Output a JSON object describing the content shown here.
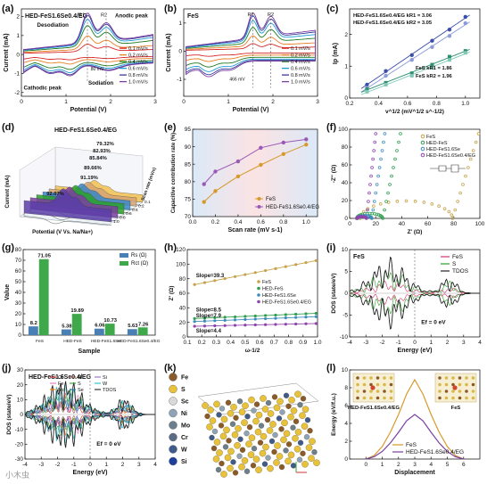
{
  "panel_labels": [
    "(a)",
    "(b)",
    "(c)",
    "(d)",
    "(e)",
    "(f)",
    "(g)",
    "(h)",
    "(i)",
    "(j)",
    "(k)",
    "(l)"
  ],
  "watermark": "小木虫",
  "chart_data": [
    {
      "id": "a",
      "type": "line",
      "title": "HED-FeS1.6Se0.4/EG",
      "xlabel": "Potential (V)",
      "ylabel": "Current (mA)",
      "xlim": [
        0,
        3
      ],
      "ylim": [
        -2.2,
        2.4
      ],
      "xticks": [
        "0",
        "1",
        "2",
        "3"
      ],
      "yticks": [
        "-2",
        "-1",
        "0",
        "1",
        "2"
      ],
      "legend": [
        "0.1 mV/s",
        "0.2 mV/s",
        "0.4 mV/s",
        "0.6 mV/s",
        "0.8 mV/s",
        "1.0 mV/s"
      ],
      "colors": [
        "#d62728",
        "#e67e22",
        "#1f7a1f",
        "#1f9bd7",
        "#3b3b9b",
        "#7b3fa0"
      ],
      "annotations": [
        "Desodiation",
        "Anodic peak",
        "Cathodic peak",
        "Sodiation",
        "R1",
        "R2",
        "80 mV"
      ],
      "scale": [
        0.25,
        0.45,
        0.7,
        0.85,
        0.95,
        1.0
      ]
    },
    {
      "id": "b",
      "type": "line",
      "title": "FeS",
      "xlabel": "Potential (V)",
      "ylabel": "Current (mA)",
      "xlim": [
        0,
        3
      ],
      "ylim": [
        -1.6,
        1.5
      ],
      "xticks": [
        "0",
        "1",
        "2",
        "3"
      ],
      "yticks": [
        "-1",
        "0",
        "1"
      ],
      "legend": [
        "0.1 mV/s",
        "0.2 mV/s",
        "0.4 mV/s",
        "0.6 mV/s",
        "0.8 mV/s",
        "1.0 mV/s"
      ],
      "colors": [
        "#d62728",
        "#e67e22",
        "#1f7a1f",
        "#1f9bd7",
        "#3b3b9b",
        "#7b3fa0"
      ],
      "annotations": [
        "R1",
        "R2",
        "466 mV"
      ],
      "scale": [
        0.2,
        0.4,
        0.62,
        0.8,
        0.92,
        1.0
      ]
    },
    {
      "id": "c",
      "type": "scatter",
      "xlabel": "v^1/2 (mV^1/2 s^-1/2)",
      "ylabel": "Ip (mA)",
      "xlim": [
        0.2,
        1.1
      ],
      "ylim": [
        0,
        2.8
      ],
      "xticks": [
        "0.2",
        "0.4",
        "0.6",
        "0.8",
        "1.0"
      ],
      "yticks": [
        "0",
        "1",
        "2"
      ],
      "x": [
        0.32,
        0.45,
        0.63,
        0.77,
        0.89,
        1.0
      ],
      "series": [
        {
          "name": "HED-FeS1.6Se0.4/EG  kR1 = 3.06",
          "color": "#3b4fa8",
          "values": [
            0.42,
            0.85,
            1.35,
            1.8,
            2.15,
            2.55
          ]
        },
        {
          "name": "HED-FeS1.6Se0.4/EG  kR2 = 3.05",
          "color": "#8a9bd6",
          "values": [
            0.32,
            0.7,
            1.2,
            1.6,
            1.95,
            2.35
          ]
        },
        {
          "name": "FeS  kR1 = 1.86",
          "color": "#2f8f6f",
          "values": [
            0.28,
            0.48,
            0.78,
            1.05,
            1.3,
            1.48
          ]
        },
        {
          "name": "FeS  kR2 = 1.96",
          "color": "#7fc8b8",
          "values": [
            0.2,
            0.42,
            0.7,
            0.95,
            1.2,
            1.42
          ]
        }
      ],
      "legend_labels": [
        [
          "HED-FeS1.6Se0.4/EG",
          "kR1 = 3.06"
        ],
        [
          "HED-FeS1.6Se0.4/EG",
          "kR2 = 3.05"
        ],
        [
          "FeS",
          "kR1 = 1.86"
        ],
        [
          "FeS",
          "kR2 = 1.96"
        ]
      ]
    },
    {
      "id": "d",
      "type": "area",
      "title": "HED-FeS1.6Se0.4/EG",
      "xlabel": "Potential (V Vs. Na/Na+)",
      "ylabel": "Current (mA)",
      "zlabel": "Scan rate (mV/s)",
      "scan_rates": [
        "0.1",
        "0.2",
        "0.4",
        "0.6",
        "0.8",
        "1.0"
      ],
      "percentages": [
        "79.32%",
        "82.93%",
        "85.84%",
        "89.66%",
        "91.19%",
        "92.07%"
      ],
      "colors": [
        "#f2c14e",
        "#d4a373",
        "#3a86c8",
        "#2ca02c",
        "#7b3fa0",
        "#5b3ea8"
      ]
    },
    {
      "id": "e",
      "type": "line",
      "xlabel": "Scan rate (mV s-1)",
      "ylabel": "Capacitive contribution rate (%)",
      "xlim": [
        0,
        1.1
      ],
      "ylim": [
        70,
        95
      ],
      "xticks": [
        "0.0",
        "0.2",
        "0.4",
        "0.6",
        "0.8",
        "1.0"
      ],
      "yticks": [
        "70",
        "75",
        "80",
        "85",
        "90",
        "95"
      ],
      "x": [
        0.1,
        0.2,
        0.4,
        0.6,
        0.8,
        1.0
      ],
      "series": [
        {
          "name": "FeS",
          "color": "#d59a2a",
          "values": [
            74.2,
            77.3,
            81.5,
            84.8,
            87.9,
            90.6
          ]
        },
        {
          "name": "HED-FeS1.6Se0.4/EG",
          "color": "#9b59b6",
          "values": [
            79.3,
            82.9,
            85.8,
            89.7,
            91.2,
            92.1
          ]
        }
      ]
    },
    {
      "id": "f",
      "type": "scatter",
      "xlabel": "Z' (Ω)",
      "ylabel": "-Z'' (Ω)",
      "xlim": [
        0,
        100
      ],
      "ylim": [
        0,
        100
      ],
      "xticks": [
        "0",
        "20",
        "40",
        "60",
        "80",
        "100"
      ],
      "yticks": [
        "0",
        "20",
        "40",
        "60",
        "80",
        "100"
      ],
      "series": [
        {
          "name": "FeS",
          "color": "#c8a24a"
        },
        {
          "name": "HED-FeS",
          "color": "#2f9e4f"
        },
        {
          "name": "HED-FeS1.6Se",
          "color": "#3c8dbc"
        },
        {
          "name": "HED-FeS1.6Se0.4/EG",
          "color": "#8e44ad"
        }
      ]
    },
    {
      "id": "g",
      "type": "bar",
      "xlabel": "Sample",
      "ylabel": "Value",
      "ylim": [
        0,
        80
      ],
      "yticks": [
        "0",
        "10",
        "20",
        "30",
        "40",
        "50",
        "60",
        "70",
        "80"
      ],
      "categories": [
        "FeS",
        "HED-FeS",
        "HED-FeS1.6Se",
        "HED-FeS1.6Se0.4/EG"
      ],
      "series": [
        {
          "name": "Rs (Ω)",
          "color": "#4a7fb5",
          "values": [
            8.2,
            5.38,
            6.06,
            5.63
          ]
        },
        {
          "name": "Rct (Ω)",
          "color": "#3ea84a",
          "values": [
            71.05,
            19.89,
            10.73,
            7.26
          ]
        }
      ],
      "value_labels": [
        [
          "8.2",
          "71.05"
        ],
        [
          "5.38",
          "19.89"
        ],
        [
          "6.06",
          "10.73"
        ],
        [
          "5.63",
          "7.26"
        ]
      ]
    },
    {
      "id": "h",
      "type": "scatter",
      "xlabel": "ω-1/2",
      "ylabel": "Z' (Ω)",
      "xlim": [
        0.1,
        1.0
      ],
      "ylim": [
        0,
        120
      ],
      "xticks": [
        "0.1",
        "0.2",
        "0.3",
        "0.4",
        "0.5",
        "0.6",
        "0.7",
        "0.8",
        "0.9",
        "1.0"
      ],
      "yticks": [
        "0",
        "20",
        "40",
        "60",
        "80",
        "100",
        "120"
      ],
      "series": [
        {
          "name": "FeS",
          "color": "#c8a24a",
          "slope_label": "Slope=39.3",
          "intercept": 66,
          "slope": 39.3
        },
        {
          "name": "HED-FeS",
          "color": "#2f9e4f",
          "slope_label": "Slope=8.5",
          "intercept": 24,
          "slope": 8.5
        },
        {
          "name": "HED-FeS1.6Se",
          "color": "#3c8dbc",
          "slope_label": "Slope=7.9",
          "intercept": 20,
          "slope": 7.9
        },
        {
          "name": "HED-FeS1.6Se0.4/EG",
          "color": "#8e44ad",
          "slope_label": "Slope=4.4",
          "intercept": 14,
          "slope": 4.4
        }
      ]
    },
    {
      "id": "i",
      "type": "line",
      "title": "FeS",
      "xlabel": "Energy (eV)",
      "ylabel": "DOS (state/eV)",
      "xlim": [
        -4,
        4
      ],
      "ylim": [
        -10,
        10
      ],
      "xticks": [
        "-4",
        "-3",
        "-2",
        "-1",
        "0",
        "1",
        "2",
        "3",
        "4"
      ],
      "yticks": [
        "-10",
        "-5",
        "0",
        "5",
        "10"
      ],
      "legend": [
        "FeS",
        "S",
        "TDOS"
      ],
      "colors": [
        "#d6336c",
        "#2ca02c",
        "#222222"
      ],
      "annotation": "Ef = 0 eV"
    },
    {
      "id": "j",
      "type": "line",
      "title": "HED-FeS1.6Se0.4/EG",
      "xlabel": "Energy (eV)",
      "ylabel": "DOS (state/eV)",
      "xlim": [
        -4,
        4
      ],
      "ylim": [
        -30,
        30
      ],
      "xticks": [
        "-4",
        "-3",
        "-2",
        "-1",
        "0",
        "1",
        "2",
        "3",
        "4"
      ],
      "yticks": [
        "-30",
        "-20",
        "-10",
        "0",
        "10",
        "20",
        "30"
      ],
      "legend": [
        "Cr",
        "Fe",
        "Mo",
        "Ni",
        "S",
        "Se",
        "Si",
        "W",
        "TDOS"
      ],
      "colors": [
        "#d62728",
        "#e377c2",
        "#ff7f0e",
        "#8c564b",
        "#2ca02c",
        "#1f77b4",
        "#9467bd",
        "#17becf",
        "#222222"
      ],
      "annotation": "Ef = 0 eV"
    },
    {
      "id": "k",
      "type": "table",
      "legend": [
        {
          "el": "Fe",
          "color": "#8a5a2b"
        },
        {
          "el": "S",
          "color": "#e8c23a"
        },
        {
          "el": "Sc",
          "color": "#d9d9d9"
        },
        {
          "el": "Ni",
          "color": "#8fa3b8"
        },
        {
          "el": "Mo",
          "color": "#6b7f8f"
        },
        {
          "el": "Cr",
          "color": "#5b6d86"
        },
        {
          "el": "W",
          "color": "#3e5b8c"
        },
        {
          "el": "Si",
          "color": "#1f3f9c"
        }
      ]
    },
    {
      "id": "l",
      "type": "line",
      "xlabel": "Displacement",
      "ylabel": "Energy (eV/f.u.)",
      "xlim": [
        -1,
        7
      ],
      "ylim": [
        0,
        10
      ],
      "xticks": [
        "0",
        "1",
        "2",
        "3",
        "4",
        "5",
        "6"
      ],
      "yticks": [
        "0",
        "2",
        "4",
        "6",
        "8",
        "10"
      ],
      "x": [
        0,
        0.5,
        1,
        1.5,
        2,
        2.5,
        3,
        3.5,
        4,
        4.5,
        5,
        5.5,
        6
      ],
      "series": [
        {
          "name": "FeS",
          "color": "#d59a2a",
          "values": [
            0,
            0.4,
            1.4,
            3.0,
            5.0,
            7.3,
            8.9,
            7.3,
            5.0,
            3.0,
            1.4,
            0.4,
            0
          ]
        },
        {
          "name": "HED-FeS1.6Se0.4/EG",
          "color": "#7b3fa0",
          "values": [
            0,
            0.25,
            0.85,
            1.8,
            3.0,
            4.3,
            5.0,
            4.3,
            3.0,
            1.8,
            0.85,
            0.25,
            0
          ]
        }
      ],
      "inset_labels": [
        "HED-FeS1.6Se0.4/EG",
        "FeS"
      ]
    }
  ]
}
